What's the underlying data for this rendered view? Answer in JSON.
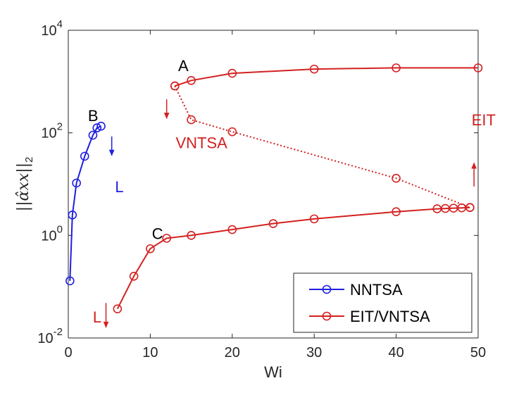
{
  "chart_data": {
    "type": "line",
    "yscale": "log",
    "xlabel": "Wi",
    "ylabel": "||α̂xx||2",
    "xlim": [
      0,
      50
    ],
    "ylim": [
      0.01,
      10000
    ],
    "xticks": [
      "0",
      "10",
      "20",
      "30",
      "40",
      "50"
    ],
    "yticks": [
      {
        "base": "10",
        "exp": "-2"
      },
      {
        "base": "10",
        "exp": "0"
      },
      {
        "base": "10",
        "exp": "2"
      },
      {
        "base": "10",
        "exp": "4"
      }
    ],
    "series": [
      {
        "name": "NNTSA",
        "color": "#1f1fe0",
        "style": "solid",
        "points": [
          [
            0.2,
            0.13
          ],
          [
            0.5,
            2.5
          ],
          [
            1,
            10.5
          ],
          [
            2,
            35
          ],
          [
            3,
            90
          ],
          [
            3.5,
            125
          ],
          [
            4,
            135
          ]
        ]
      },
      {
        "name": "EIT/VNTSA",
        "color": "#d42020",
        "style": "solid",
        "points": [
          [
            13,
            820
          ],
          [
            15,
            1050
          ],
          [
            20,
            1450
          ],
          [
            30,
            1750
          ],
          [
            40,
            1850
          ],
          [
            50,
            1850
          ]
        ]
      },
      {
        "name": "EIT/VNTSA (VNTSA branch)",
        "color": "#d42020",
        "style": "dotted",
        "legend": false,
        "points": [
          [
            13,
            820
          ],
          [
            15,
            180
          ],
          [
            20,
            105
          ],
          [
            40,
            13
          ],
          [
            49,
            3.5
          ]
        ]
      },
      {
        "name": "EIT/VNTSA (lower branch)",
        "color": "#d42020",
        "style": "solid",
        "legend": false,
        "points": [
          [
            6,
            0.037
          ],
          [
            8,
            0.16
          ],
          [
            10,
            0.55
          ],
          [
            12,
            0.88
          ],
          [
            15,
            1.0
          ],
          [
            20,
            1.3
          ],
          [
            25,
            1.7
          ],
          [
            30,
            2.1
          ],
          [
            40,
            2.9
          ],
          [
            45,
            3.3
          ],
          [
            46,
            3.35
          ],
          [
            47,
            3.4
          ],
          [
            48,
            3.45
          ],
          [
            49,
            3.5
          ]
        ]
      }
    ],
    "annotations": [
      {
        "text": "A",
        "x": 13.4,
        "y": 1600,
        "color": "#000000"
      },
      {
        "text": "B",
        "x": 2.4,
        "y": 170,
        "color": "#000000"
      },
      {
        "text": "C",
        "x": 10.2,
        "y": 0.85,
        "color": "#000000"
      },
      {
        "text": "VNTSA",
        "x": 13.1,
        "y": 50,
        "color": "#d42020"
      },
      {
        "text": "L",
        "x": 5.7,
        "y": 7,
        "color": "#1f1fe0"
      },
      {
        "text": "EIT",
        "x": 49.2,
        "y": 140,
        "color": "#d42020"
      },
      {
        "text": "L",
        "x": 3,
        "y": 0.02,
        "color": "#d42020"
      }
    ],
    "arrows": [
      {
        "color": "#d42020",
        "x": 12,
        "y_from": 450,
        "y_to": 190
      },
      {
        "color": "#1f1fe0",
        "x": 5.3,
        "y_from": 85,
        "y_to": 36
      },
      {
        "color": "#d42020",
        "x": 49.5,
        "y_from": 9,
        "y_to": 26
      },
      {
        "color": "#d42020",
        "x": 4.6,
        "y_from": 0.048,
        "y_to": 0.016
      }
    ],
    "legend": {
      "position": "bottom-right",
      "entries": [
        "NNTSA",
        "EIT/VNTSA"
      ]
    }
  }
}
